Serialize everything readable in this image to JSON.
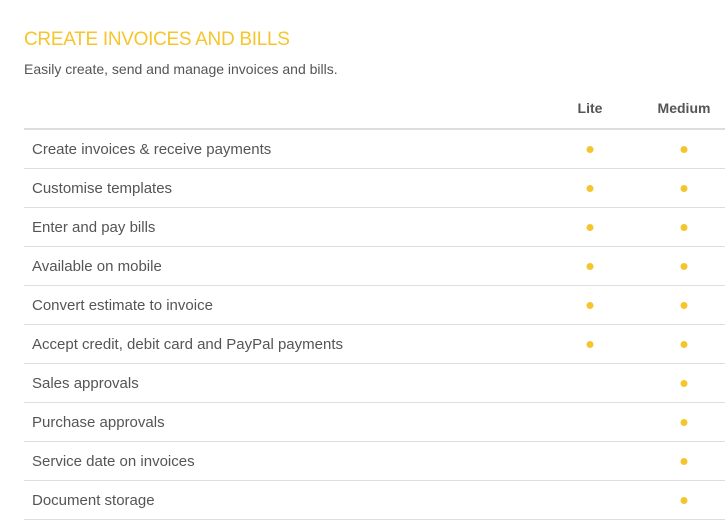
{
  "section": {
    "title": "CREATE INVOICES AND BILLS",
    "subtitle": "Easily create, send and manage invoices and bills."
  },
  "columns": [
    "Lite",
    "Medium"
  ],
  "accent_color": "#f7c52b",
  "features": [
    {
      "label": "Create invoices & receive payments",
      "lite": true,
      "medium": true
    },
    {
      "label": "Customise templates",
      "lite": true,
      "medium": true
    },
    {
      "label": "Enter and pay bills",
      "lite": true,
      "medium": true
    },
    {
      "label": "Available on mobile",
      "lite": true,
      "medium": true
    },
    {
      "label": "Convert estimate to invoice",
      "lite": true,
      "medium": true
    },
    {
      "label": "Accept credit, debit card and PayPal payments",
      "lite": true,
      "medium": true
    },
    {
      "label": "Sales approvals",
      "lite": false,
      "medium": true
    },
    {
      "label": "Purchase approvals",
      "lite": false,
      "medium": true
    },
    {
      "label": "Service date on invoices",
      "lite": false,
      "medium": true
    },
    {
      "label": "Document storage",
      "lite": false,
      "medium": true
    }
  ]
}
